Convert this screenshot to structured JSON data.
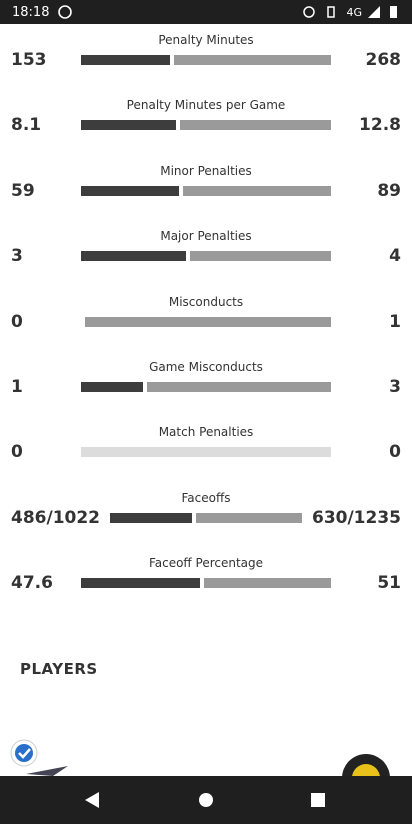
{
  "status_bar": {
    "time": "18:18",
    "network": "4G"
  },
  "stats": [
    {
      "label": "Penalty Minutes",
      "left": 153,
      "right": 268
    },
    {
      "label": "Penalty Minutes per Game",
      "left": 8.1,
      "right": 12.8
    },
    {
      "label": "Minor Penalties",
      "left": 59,
      "right": 89
    },
    {
      "label": "Major Penalties",
      "left": 3,
      "right": 4
    },
    {
      "label": "Misconducts",
      "left": 0,
      "right": 1
    },
    {
      "label": "Game Misconducts",
      "left": 1,
      "right": 3
    },
    {
      "label": "Match Penalties",
      "left": 0,
      "right": 0
    },
    {
      "label": "Faceoffs",
      "left": "486/1022",
      "right": "630/1235"
    },
    {
      "label": "Faceoff Percentage",
      "left": 47.6,
      "right": 51
    }
  ],
  "section": {
    "title": "PLAYERS"
  }
}
